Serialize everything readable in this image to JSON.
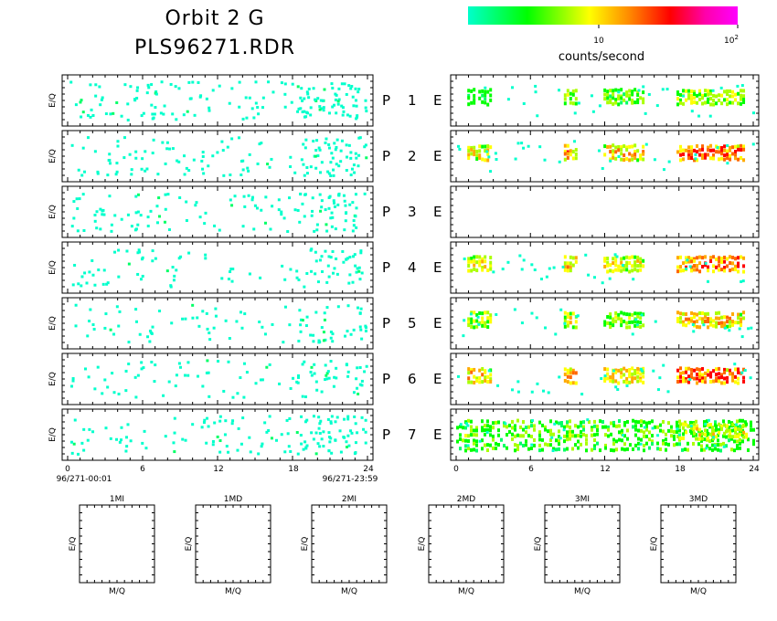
{
  "header": {
    "title_line1": "Orbit 2 G",
    "title_line2": "PLS96271.RDR"
  },
  "colorbar": {
    "label": "counts/second",
    "tick_10": "10",
    "tick_100_base": "10",
    "tick_100_exp": "2",
    "stops": [
      "#00ffcc",
      "#00ff00",
      "#ffff00",
      "#ff8800",
      "#ff0000",
      "#ff00cc",
      "#ff00ff"
    ]
  },
  "axes": {
    "ylabel": "E/Q",
    "mlabel": "M/Q",
    "xticks": [
      "0",
      "6",
      "12",
      "18",
      "24"
    ],
    "left_start": "96/271-00:01",
    "left_end": "96/271-23:59"
  },
  "panel_labels": [
    {
      "p": "P",
      "n": "1",
      "e": "E"
    },
    {
      "p": "P",
      "n": "2",
      "e": "E"
    },
    {
      "p": "P",
      "n": "3",
      "e": "E"
    },
    {
      "p": "P",
      "n": "4",
      "e": "E"
    },
    {
      "p": "P",
      "n": "5",
      "e": "E"
    },
    {
      "p": "P",
      "n": "6",
      "e": "E"
    },
    {
      "p": "P",
      "n": "7",
      "e": "E"
    }
  ],
  "mass_panels": [
    "1MI",
    "1MD",
    "2MI",
    "2MD",
    "3MI",
    "3MD"
  ],
  "chart_data": {
    "type": "heatmap",
    "x_unit": "hours",
    "xlim": [
      0,
      24
    ],
    "left_panels_sparse_intensity": "low (cyan)",
    "right_panels": [
      {
        "panel": "P1 E",
        "bursts": [
          [
            0.9,
            2.8,
            0.3
          ],
          [
            8.7,
            9.6,
            0.4
          ],
          [
            11.9,
            15.1,
            0.35
          ],
          [
            17.8,
            23.2,
            0.45
          ]
        ]
      },
      {
        "panel": "P2 E",
        "bursts": [
          [
            0.9,
            2.8,
            0.55
          ],
          [
            8.7,
            9.6,
            0.65
          ],
          [
            11.9,
            15.1,
            0.6
          ],
          [
            17.8,
            23.2,
            0.8
          ]
        ]
      },
      {
        "panel": "P3 E",
        "bursts": []
      },
      {
        "panel": "P4 E",
        "bursts": [
          [
            0.9,
            2.8,
            0.55
          ],
          [
            8.7,
            9.6,
            0.6
          ],
          [
            11.9,
            15.1,
            0.5
          ],
          [
            17.8,
            23.2,
            0.8
          ]
        ]
      },
      {
        "panel": "P5 E",
        "bursts": [
          [
            0.9,
            2.8,
            0.45
          ],
          [
            8.7,
            9.6,
            0.5
          ],
          [
            11.9,
            15.1,
            0.4
          ],
          [
            17.8,
            23.2,
            0.6
          ]
        ]
      },
      {
        "panel": "P6 E",
        "bursts": [
          [
            0.9,
            2.8,
            0.6
          ],
          [
            8.7,
            9.6,
            0.65
          ],
          [
            11.9,
            15.1,
            0.6
          ],
          [
            17.8,
            23.2,
            0.8
          ]
        ]
      },
      {
        "panel": "P7 E",
        "bursts": [
          [
            0.0,
            24.0,
            0.35
          ],
          [
            17.8,
            23.5,
            0.5
          ]
        ]
      }
    ],
    "ylabel": "E/Q",
    "colorbar_label": "counts/second"
  }
}
